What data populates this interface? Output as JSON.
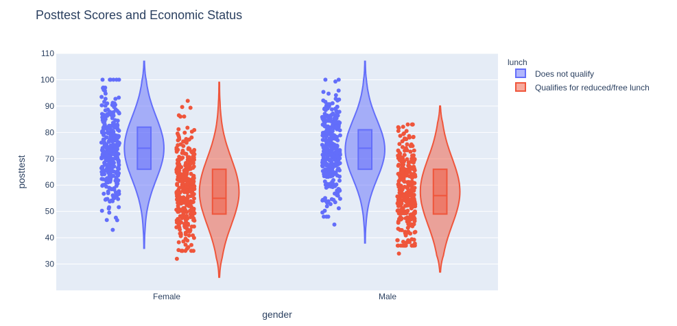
{
  "chart_data": {
    "type": "violin",
    "title": "Posttest Scores and Economic Status",
    "xlabel": "gender",
    "ylabel": "posttest",
    "ylim": [
      20,
      110
    ],
    "yticks": [
      30,
      40,
      50,
      60,
      70,
      80,
      90,
      100,
      110
    ],
    "categories": [
      "Female",
      "Male"
    ],
    "legend": {
      "title": "lunch",
      "placement": "top-right"
    },
    "grid": true,
    "series": [
      {
        "name": "Does not qualify",
        "color": "#636efa",
        "stats": {
          "Female": {
            "min": 43,
            "q1": 66,
            "median": 74,
            "q3": 82,
            "max": 100,
            "kde_low": 36,
            "kde_high": 107
          },
          "Male": {
            "min": 45,
            "q1": 66,
            "median": 74,
            "q3": 81,
            "max": 100,
            "kde_low": 38,
            "kde_high": 107
          }
        }
      },
      {
        "name": "Qualifies for reduced/free lunch",
        "color": "#ef553b",
        "stats": {
          "Female": {
            "min": 32,
            "q1": 49,
            "median": 55,
            "q3": 66,
            "max": 92,
            "kde_low": 25,
            "kde_high": 99
          },
          "Male": {
            "min": 34,
            "q1": 49,
            "median": 56,
            "q3": 66,
            "max": 83,
            "kde_low": 27,
            "kde_high": 90
          }
        }
      }
    ]
  }
}
